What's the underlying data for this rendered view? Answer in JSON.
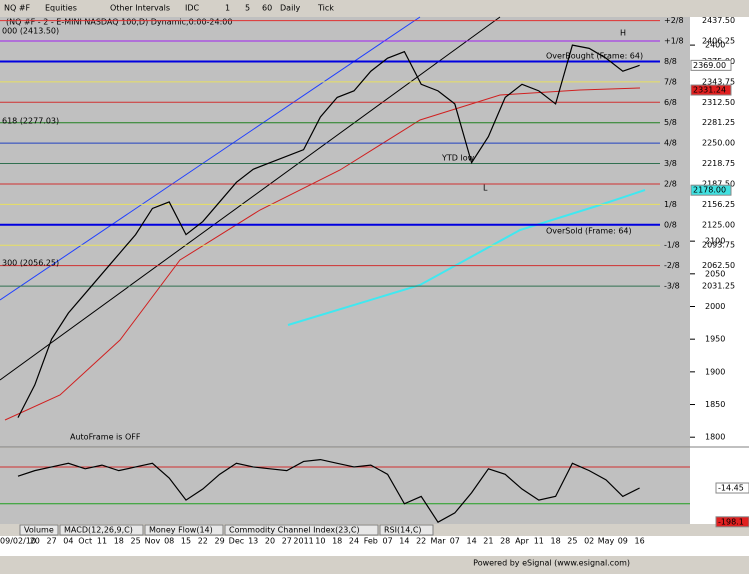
{
  "toolbar": {
    "symbol": "NQ #F",
    "items": [
      "Equities",
      "Other Intervals",
      "IDC",
      "1",
      "5",
      "60",
      "Daily",
      "Tick"
    ]
  },
  "chart_data": [
    {
      "type": "line",
      "title": "(NQ #F - 2 - E-MINI NASDAQ 100,D) Dynamic,0:00-24:00",
      "color": "#000000",
      "categories": [
        "09/02/10",
        "20",
        "27",
        "04",
        "Oct",
        "11",
        "18",
        "25",
        "Nov",
        "08",
        "15",
        "22",
        "29",
        "Dec",
        "13",
        "20",
        "27",
        "2011",
        "10",
        "18",
        "24",
        "Feb",
        "07",
        "14",
        "22",
        "Mar",
        "07",
        "14",
        "21",
        "28",
        "Apr",
        "11",
        "18",
        "25",
        "02",
        "May",
        "09",
        "16"
      ],
      "values": [
        1830,
        1880,
        1950,
        1990,
        2020,
        2050,
        2080,
        2110,
        2150,
        2160,
        2110,
        2130,
        2160,
        2190,
        2210,
        2220,
        2230,
        2240,
        2290,
        2320,
        2330,
        2360,
        2380,
        2390,
        2340,
        2330,
        2310,
        2220,
        2260,
        2320,
        2340,
        2330,
        2310,
        2400,
        2395,
        2380,
        2360,
        2369
      ],
      "ylim": [
        1785,
        2443
      ],
      "yticks": [
        2400,
        2100,
        2050,
        2000,
        1950,
        1900,
        1850,
        1800
      ],
      "murrey_levels": [
        {
          "name": "+2/8",
          "value": 2437.5,
          "label": "2437.50",
          "color": "#e03030"
        },
        {
          "name": "+1/8",
          "value": 2406.25,
          "label": "2406.25",
          "color": "#a020f0"
        },
        {
          "name": "8/8",
          "value": 2375,
          "label": "2375.00",
          "color": "#0000e0"
        },
        {
          "name": "7/8",
          "value": 2343.75,
          "label": "2343.75",
          "color": "#e8e060"
        },
        {
          "name": "6/8",
          "value": 2312.5,
          "label": "2312.50",
          "color": "#d03030"
        },
        {
          "name": "5/8",
          "value": 2281.25,
          "label": "2281.25",
          "color": "#208020"
        },
        {
          "name": "4/8",
          "value": 2250,
          "label": "2250.00",
          "color": "#2040c0"
        },
        {
          "name": "3/8",
          "value": 2218.75,
          "label": "2218.75",
          "color": "#307050"
        },
        {
          "name": "2/8",
          "value": 2187.5,
          "label": "2187.50",
          "color": "#d03030"
        },
        {
          "name": "1/8",
          "value": 2156.25,
          "label": "2156.25",
          "color": "#e8e060"
        },
        {
          "name": "0/8",
          "value": 2125,
          "label": "2125.00",
          "color": "#0000e0"
        },
        {
          "name": "-1/8",
          "value": 2093.75,
          "label": "2093.75",
          "color": "#e8e060"
        },
        {
          "name": "-2/8",
          "value": 2062.5,
          "label": "2062.50",
          "color": "#d03030"
        },
        {
          "name": "-3/8",
          "value": 2031.25,
          "label": "2031.25",
          "color": "#307050"
        }
      ],
      "price_markers": [
        {
          "value": 2369,
          "label": "2369.00",
          "color": "#ffffff"
        },
        {
          "value": 2331.24,
          "label": "2331.24",
          "color": "#e02020"
        },
        {
          "value": 2178,
          "label": "2178.00",
          "color": "#40e0e0"
        }
      ],
      "annotations": [
        "YTD low",
        "L",
        "H",
        "OverSold (Frame: 64)",
        "OverBought (Frame: 64)",
        "000 (2413.50)",
        "618 (2277.03)",
        "300 (2056.25)",
        "AutoFrame is OFF"
      ]
    },
    {
      "type": "line",
      "color": "#000000",
      "values": [
        50,
        80,
        100,
        120,
        90,
        110,
        80,
        100,
        120,
        40,
        -80,
        -20,
        60,
        120,
        100,
        90,
        80,
        130,
        140,
        120,
        100,
        110,
        60,
        -100,
        -60,
        -200,
        -150,
        -40,
        90,
        60,
        -20,
        -80,
        -60,
        120,
        80,
        30,
        -60,
        -14.45
      ],
      "ylim": [
        -210,
        203
      ],
      "levels": [
        100,
        -100
      ],
      "markers": [
        -14.45,
        -198.1
      ]
    }
  ],
  "tabs": [
    "Volume",
    "MACD(12,26,9,C)",
    "Money Flow(14)",
    "Commodity Channel Index(23,C)",
    "RSI(14,C)"
  ],
  "footer": "Powered by eSignal (www.esignal.com)"
}
